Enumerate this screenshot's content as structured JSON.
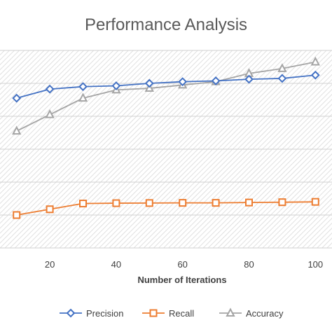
{
  "chart_data": {
    "type": "line",
    "title": "Performance Analysis",
    "xlabel": "Number of Iterations",
    "ylabel": "",
    "x": [
      10,
      20,
      30,
      40,
      50,
      60,
      70,
      80,
      90,
      100
    ],
    "xticks": [
      "20",
      "40",
      "60",
      "80",
      "100"
    ],
    "xtick_values": [
      20,
      40,
      60,
      80,
      100
    ],
    "xlim": [
      5,
      105
    ],
    "ylim": [
      0,
      1.2
    ],
    "yticks_shown": false,
    "grid": true,
    "legend_position": "bottom",
    "series": [
      {
        "name": "Precision",
        "color": "#4472C4",
        "marker": "diamond",
        "values": [
          0.91,
          0.965,
          0.98,
          0.985,
          1.0,
          1.01,
          1.015,
          1.025,
          1.03,
          1.05
        ]
      },
      {
        "name": "Recall",
        "color": "#ED7D31",
        "marker": "square",
        "values": [
          0.2,
          0.235,
          0.27,
          0.272,
          0.273,
          0.274,
          0.274,
          0.276,
          0.278,
          0.28
        ]
      },
      {
        "name": "Accuracy",
        "color": "#A5A5A5",
        "marker": "triangle",
        "values": [
          0.71,
          0.81,
          0.91,
          0.96,
          0.97,
          0.99,
          1.01,
          1.06,
          1.09,
          1.13
        ]
      }
    ]
  }
}
